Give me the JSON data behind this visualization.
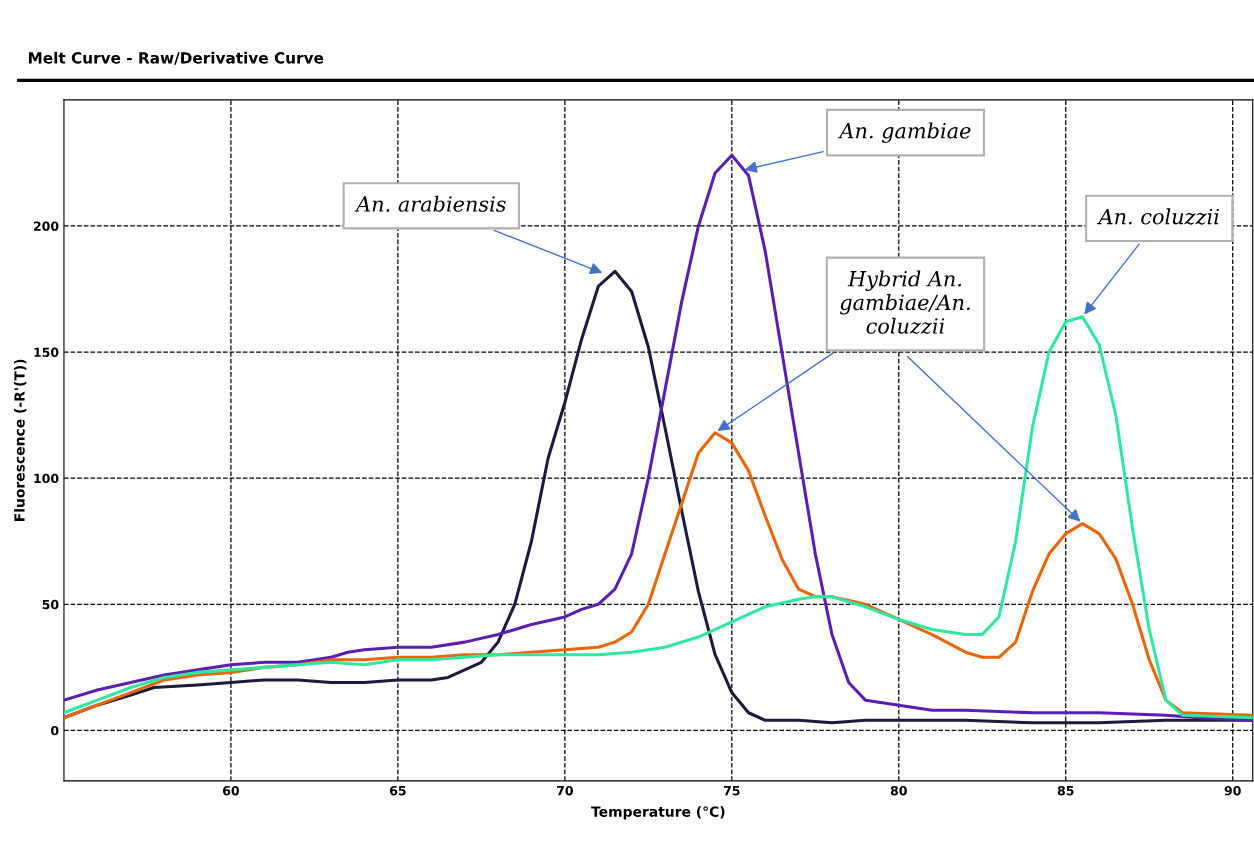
{
  "chart_data": {
    "type": "line",
    "title": "Melt Curve - Raw/Derivative Curve",
    "xlabel": "Temperature (°C)",
    "ylabel": "Fluorescence (-R'(T))",
    "xlim": [
      55,
      90.6
    ],
    "ylim": [
      -20,
      250
    ],
    "xticks": [
      60,
      65,
      70,
      75,
      80,
      85,
      90
    ],
    "yticks": [
      0,
      50,
      100,
      150,
      200
    ],
    "grid": true,
    "legend": false,
    "series": [
      {
        "color": "#1c1a3e",
        "x": [
          55,
          56,
          57,
          57.7,
          59,
          60,
          61,
          62,
          63,
          64,
          65,
          66,
          66.5,
          67,
          67.5,
          68,
          68.5,
          69,
          69.5,
          70,
          70.5,
          71,
          71.5,
          72,
          72.5,
          73,
          73.5,
          74,
          74.5,
          75,
          75.5,
          76,
          77,
          78,
          79,
          80,
          82,
          84,
          86,
          88,
          89,
          90.6
        ],
        "values": [
          5,
          10,
          14,
          17,
          18,
          19,
          20,
          20,
          19,
          19,
          20,
          20,
          21,
          24,
          27,
          35,
          50,
          75,
          108,
          130,
          155,
          176,
          182,
          174,
          152,
          120,
          87,
          55,
          30,
          15,
          7,
          4,
          4,
          3,
          4,
          4,
          4,
          3,
          3,
          4,
          4,
          4
        ]
      },
      {
        "color": "#5a1fb0",
        "x": [
          55,
          56,
          57,
          58,
          59,
          60,
          61,
          62,
          63,
          63.5,
          64,
          65,
          66,
          67,
          68,
          69,
          70,
          70.5,
          71,
          71.5,
          72,
          72.5,
          73,
          73.5,
          74,
          74.5,
          75,
          75.5,
          76,
          76.5,
          77,
          77.5,
          78,
          78.5,
          79,
          80,
          81,
          82,
          84,
          86,
          88,
          89,
          90.6
        ],
        "values": [
          12,
          16,
          19,
          22,
          24,
          26,
          27,
          27,
          29,
          31,
          32,
          33,
          33,
          35,
          38,
          42,
          45,
          48,
          50,
          56,
          70,
          100,
          135,
          170,
          200,
          221,
          228,
          220,
          190,
          150,
          110,
          70,
          38,
          19,
          12,
          10,
          8,
          8,
          7,
          7,
          6,
          5,
          4
        ]
      },
      {
        "color": "#e8650a",
        "x": [
          55,
          56,
          57,
          58,
          59,
          60,
          61,
          62,
          63,
          64,
          65,
          66,
          67,
          68,
          69,
          70,
          71,
          71.5,
          72,
          72.5,
          73,
          73.5,
          74,
          74.5,
          75,
          75.5,
          76,
          76.5,
          77,
          77.5,
          78,
          79,
          80,
          81,
          82,
          82.5,
          83,
          83.5,
          84,
          84.5,
          85,
          85.5,
          86,
          86.5,
          87,
          87.5,
          88,
          88.5,
          90.6
        ],
        "values": [
          5,
          10,
          15,
          20,
          22,
          23,
          25,
          26,
          28,
          28,
          29,
          29,
          30,
          30,
          31,
          32,
          33,
          35,
          39,
          50,
          70,
          90,
          110,
          118,
          114,
          103,
          85,
          68,
          56,
          53,
          53,
          50,
          44,
          38,
          31,
          29,
          29,
          35,
          55,
          70,
          78,
          82,
          78,
          68,
          50,
          28,
          12,
          7,
          6
        ]
      },
      {
        "color": "#2ee8a0",
        "x": [
          55,
          56,
          57,
          58,
          59,
          60,
          61,
          62,
          63,
          64,
          65,
          66,
          67,
          68,
          69,
          70,
          71,
          72,
          73,
          74,
          75,
          76,
          77,
          77.5,
          78,
          79,
          80,
          81,
          82,
          82.5,
          83,
          83.5,
          84,
          84.5,
          85,
          85.5,
          86,
          86.5,
          87,
          87.5,
          88,
          88.5,
          90.6
        ],
        "values": [
          7,
          12,
          17,
          21,
          23,
          24,
          25,
          26,
          27,
          26,
          28,
          28,
          29,
          30,
          30,
          30,
          30,
          31,
          33,
          37,
          43,
          49,
          52,
          53,
          53,
          49,
          44,
          40,
          38,
          38,
          45,
          75,
          120,
          150,
          162,
          164,
          153,
          125,
          80,
          40,
          12,
          6,
          5
        ]
      }
    ],
    "annotations": [
      {
        "text": "An. arabiensis",
        "x": 71.2,
        "y": 181
      },
      {
        "text": "An. gambiae",
        "x": 75.3,
        "y": 222
      },
      {
        "text": "Hybrid An.\ngambiae/An.\ncoluzzii",
        "x": 74.5,
        "y": 118
      },
      {
        "text": "An. coluzzii",
        "x": 85.5,
        "y": 164
      }
    ]
  }
}
